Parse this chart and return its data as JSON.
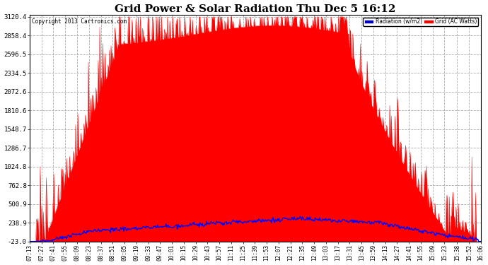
{
  "title": "Grid Power & Solar Radiation Thu Dec 5 16:12",
  "copyright": "Copyright 2013 Cartronics.com",
  "legend_radiation": "Radiation (w/m2)",
  "legend_grid": "Grid (AC Watts)",
  "yticks": [
    -23.0,
    238.9,
    500.9,
    762.8,
    1024.8,
    1286.7,
    1548.7,
    1810.6,
    2072.6,
    2334.5,
    2596.5,
    2858.4,
    3120.4
  ],
  "ymin": -23.0,
  "ymax": 3120.4,
  "background_color": "#ffffff",
  "plot_bg_color": "#ffffff",
  "grid_color": "#aaaaaa",
  "radiation_color": "#0000ff",
  "grid_power_color": "#ff0000",
  "title_fontsize": 11,
  "xtick_labels": [
    "07:13",
    "07:27",
    "07:41",
    "07:55",
    "08:09",
    "08:23",
    "08:37",
    "08:51",
    "09:05",
    "09:19",
    "09:33",
    "09:47",
    "10:01",
    "10:15",
    "10:29",
    "10:43",
    "10:57",
    "11:11",
    "11:25",
    "11:39",
    "11:53",
    "12:07",
    "12:21",
    "12:35",
    "12:49",
    "13:03",
    "13:17",
    "13:31",
    "13:45",
    "13:59",
    "14:13",
    "14:27",
    "14:41",
    "14:55",
    "15:09",
    "15:23",
    "15:38",
    "15:52",
    "16:06"
  ]
}
